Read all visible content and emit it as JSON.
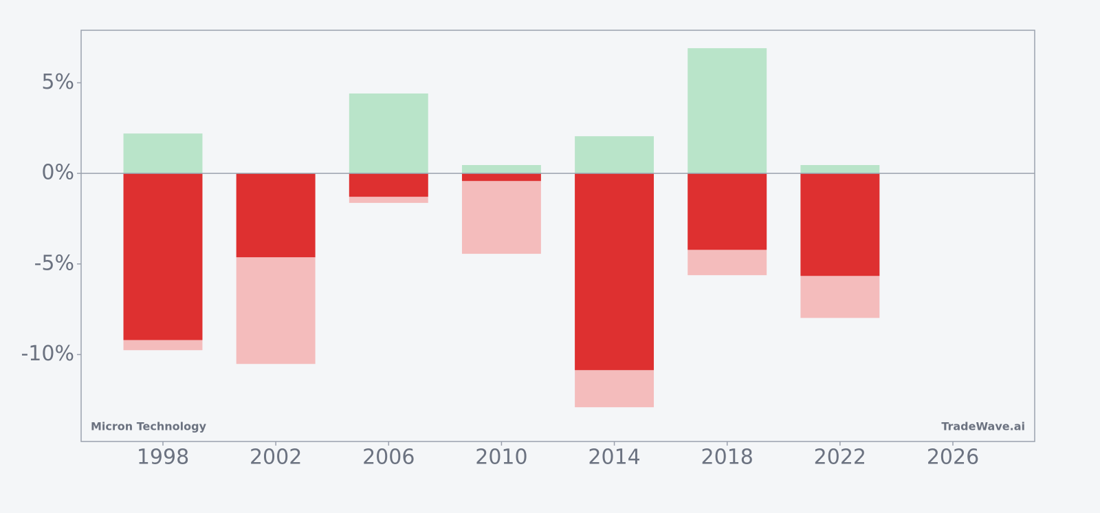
{
  "chart_data": {
    "type": "bar",
    "annotations": [
      "Micron Technology",
      "TradeWave.ai"
    ],
    "x": [
      1998,
      2002,
      2006,
      2010,
      2014,
      2018,
      2022
    ],
    "series": [
      {
        "color": "#f4bcbc",
        "values": [
          -9.76,
          -10.52,
          -1.63,
          -4.44,
          -12.91,
          -5.62,
          -7.98
        ]
      },
      {
        "color": "#de3030",
        "values": [
          -9.2,
          -4.63,
          -1.29,
          -0.42,
          -10.86,
          -4.22,
          -5.66
        ]
      },
      {
        "color": "#b9e4c9",
        "values": [
          2.2,
          null,
          4.41,
          0.46,
          2.05,
          6.91,
          0.46
        ]
      }
    ],
    "xlim": [
      1995.1,
      2028.9
    ],
    "xticks": [
      1998,
      2002,
      2006,
      2010,
      2014,
      2018,
      2022,
      2026
    ],
    "ylim": [
      -14.8,
      7.9
    ],
    "yticks": [
      {
        "value": -10,
        "label": "-10%"
      },
      {
        "value": -5,
        "label": "-5%"
      },
      {
        "value": 0,
        "label": "0%"
      },
      {
        "value": 5,
        "label": "5%"
      }
    ]
  }
}
